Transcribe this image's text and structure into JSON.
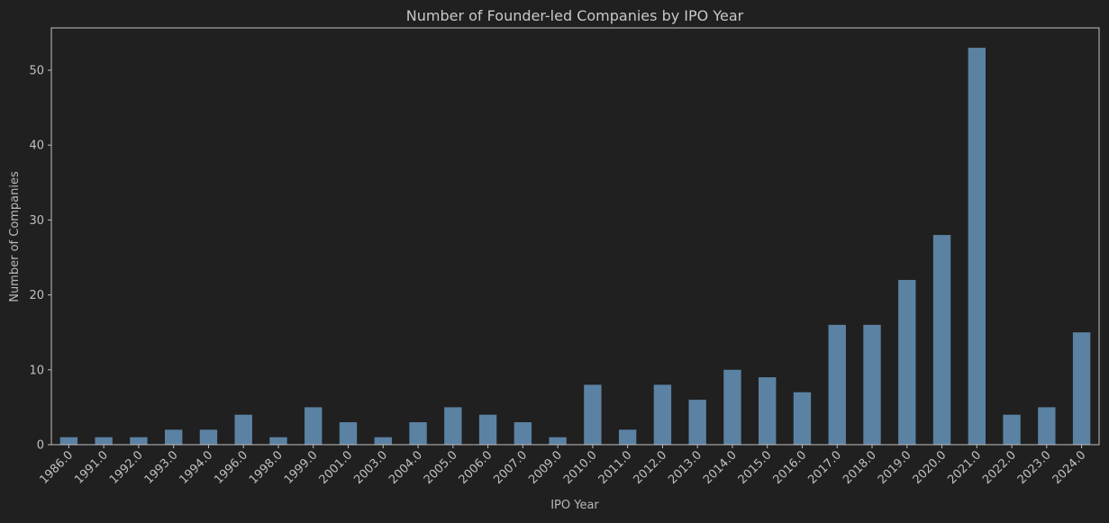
{
  "chart_data": {
    "type": "bar",
    "title": "Number of Founder-led Companies by IPO Year",
    "xlabel": "IPO Year",
    "ylabel": "Number of Companies",
    "categories": [
      "1986.0",
      "1991.0",
      "1992.0",
      "1993.0",
      "1994.0",
      "1996.0",
      "1998.0",
      "1999.0",
      "2001.0",
      "2003.0",
      "2004.0",
      "2005.0",
      "2006.0",
      "2007.0",
      "2009.0",
      "2010.0",
      "2011.0",
      "2012.0",
      "2013.0",
      "2014.0",
      "2015.0",
      "2016.0",
      "2017.0",
      "2018.0",
      "2019.0",
      "2020.0",
      "2021.0",
      "2022.0",
      "2023.0",
      "2024.0"
    ],
    "values": [
      1,
      1,
      1,
      2,
      2,
      4,
      1,
      5,
      3,
      1,
      3,
      5,
      4,
      3,
      1,
      8,
      2,
      8,
      6,
      10,
      9,
      7,
      16,
      16,
      22,
      28,
      53,
      4,
      5,
      15
    ],
    "ylim": [
      0,
      55.65
    ],
    "yticks": [
      0,
      10,
      20,
      30,
      40,
      50
    ],
    "grid": false,
    "legend": "none",
    "colors": {
      "background": "#202020",
      "bar": "#5b82a3",
      "axis": "#c0c0c0",
      "text": "#c8c8c8"
    }
  }
}
